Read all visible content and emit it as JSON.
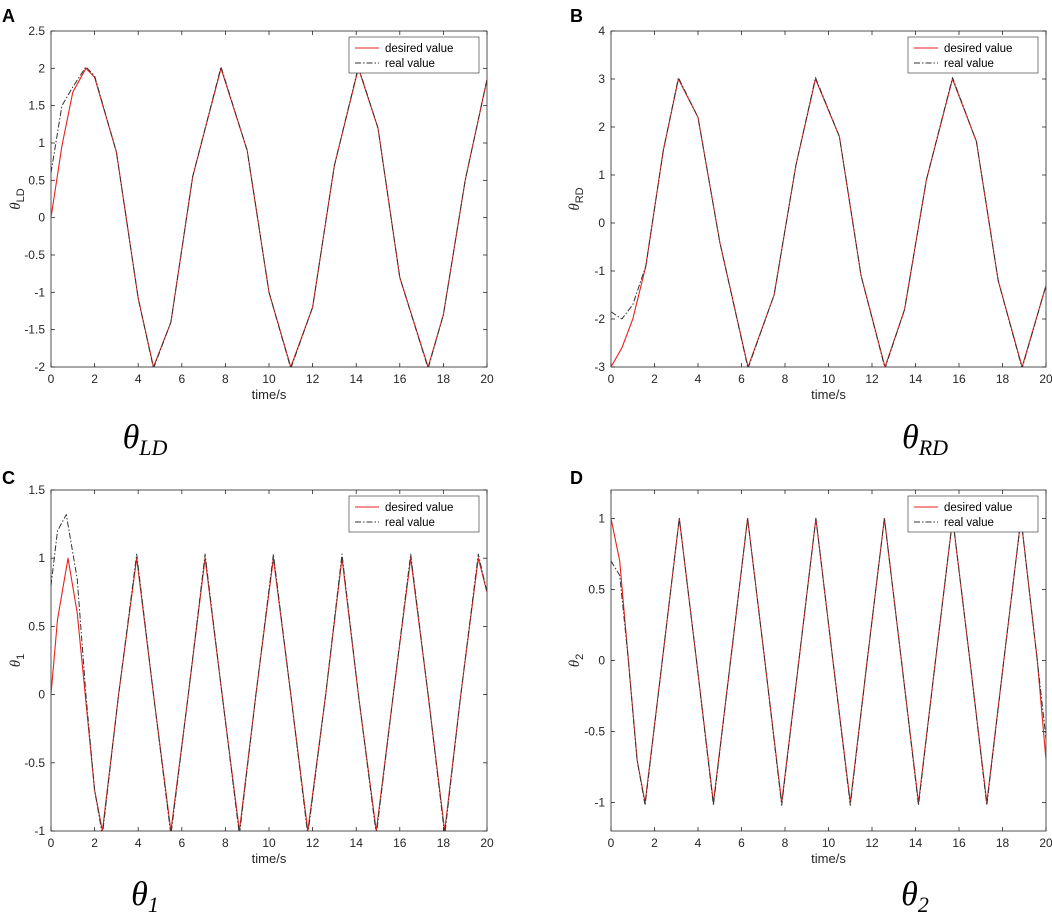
{
  "chart_data": [
    {
      "type": "line",
      "panel_label": "A",
      "caption": {
        "symbol": "θ",
        "sub": "LD"
      },
      "xlabel": "time/s",
      "ylabel": {
        "symbol": "θ",
        "sub": "LD"
      },
      "xlim": [
        0,
        20
      ],
      "ylim": [
        -2,
        2.5
      ],
      "xticks": [
        0,
        2,
        4,
        6,
        8,
        10,
        12,
        14,
        16,
        18,
        20
      ],
      "yticks": [
        -2,
        -1.5,
        -1,
        -0.5,
        0,
        0.5,
        1,
        1.5,
        2,
        2.5
      ],
      "grid": false,
      "legend": "top-right",
      "series": [
        {
          "name": "desired value",
          "color": "#e8221b",
          "style": "solid",
          "x": [
            0,
            0.5,
            1,
            1.6,
            2,
            3,
            4,
            4.7,
            5.5,
            6.5,
            7.8,
            9,
            10,
            11,
            12,
            13,
            14.1,
            15,
            16,
            17.3,
            18,
            19,
            20
          ],
          "y": [
            0,
            0.96,
            1.68,
            2.0,
            1.88,
            0.88,
            -1.08,
            -2.0,
            -1.4,
            0.55,
            2.0,
            0.9,
            -1.0,
            -2.0,
            -1.2,
            0.7,
            2.0,
            1.2,
            -0.8,
            -2.0,
            -1.3,
            0.5,
            1.85
          ]
        },
        {
          "name": "real value",
          "color": "#333333",
          "style": "dashdot",
          "x": [
            0,
            0.5,
            1,
            1.6,
            2,
            3,
            4,
            4.7,
            5.5,
            6.5,
            7.8,
            9,
            10,
            11,
            12,
            13,
            14.1,
            15,
            16,
            17.3,
            18,
            19,
            20
          ],
          "y": [
            0.6,
            1.5,
            1.75,
            2.02,
            1.9,
            0.88,
            -1.08,
            -2.02,
            -1.4,
            0.55,
            2.02,
            0.9,
            -1.0,
            -2.02,
            -1.2,
            0.7,
            2.02,
            1.2,
            -0.8,
            -2.02,
            -1.3,
            0.5,
            1.85
          ]
        }
      ]
    },
    {
      "type": "line",
      "panel_label": "B",
      "caption": {
        "symbol": "θ",
        "sub": "RD"
      },
      "xlabel": "time/s",
      "ylabel": {
        "symbol": "θ",
        "sub": "RD"
      },
      "xlim": [
        0,
        20
      ],
      "ylim": [
        -3,
        4
      ],
      "xticks": [
        0,
        2,
        4,
        6,
        8,
        10,
        12,
        14,
        16,
        18,
        20
      ],
      "yticks": [
        -3,
        -2,
        -1,
        0,
        1,
        2,
        3,
        4
      ],
      "grid": false,
      "legend": "top-right",
      "series": [
        {
          "name": "desired value",
          "color": "#e8221b",
          "style": "solid",
          "x": [
            0,
            0.5,
            1,
            1.6,
            2.4,
            3.1,
            4,
            5,
            6.3,
            7.5,
            8.5,
            9.4,
            10.5,
            11.5,
            12.6,
            13.5,
            14.5,
            15.7,
            16.8,
            17.8,
            18.9,
            20
          ],
          "y": [
            -3,
            -2.6,
            -2.0,
            -0.9,
            1.5,
            3.0,
            2.2,
            -0.4,
            -3.0,
            -1.5,
            1.2,
            3.0,
            1.8,
            -1.1,
            -3.0,
            -1.8,
            0.9,
            3.0,
            1.7,
            -1.2,
            -3.0,
            -1.3
          ]
        },
        {
          "name": "real value",
          "color": "#333333",
          "style": "dashdot",
          "x": [
            0,
            0.5,
            1,
            1.6,
            2.4,
            3.1,
            4,
            5,
            6.3,
            7.5,
            8.5,
            9.4,
            10.5,
            11.5,
            12.6,
            13.5,
            14.5,
            15.7,
            16.8,
            17.8,
            18.9,
            20
          ],
          "y": [
            -1.85,
            -2.0,
            -1.7,
            -0.9,
            1.5,
            3.03,
            2.2,
            -0.4,
            -3.03,
            -1.5,
            1.2,
            3.03,
            1.8,
            -1.1,
            -3.03,
            -1.8,
            0.9,
            3.03,
            1.7,
            -1.2,
            -3.03,
            -1.3
          ]
        }
      ]
    },
    {
      "type": "line",
      "panel_label": "C",
      "caption": {
        "symbol": "θ",
        "sub": "1"
      },
      "xlabel": "time/s",
      "ylabel": {
        "symbol": "θ",
        "sub": "1"
      },
      "xlim": [
        0,
        20
      ],
      "ylim": [
        -1,
        1.5
      ],
      "xticks": [
        0,
        2,
        4,
        6,
        8,
        10,
        12,
        14,
        16,
        18,
        20
      ],
      "yticks": [
        -1,
        -0.5,
        0,
        0.5,
        1,
        1.5
      ],
      "grid": false,
      "legend": "top-right",
      "series": [
        {
          "name": "desired value",
          "color": "#e8221b",
          "style": "solid",
          "x": [
            0,
            0.3,
            0.78,
            1.2,
            1.6,
            2.0,
            2.36,
            3.1,
            3.93,
            4.7,
            5.5,
            6.3,
            7.07,
            7.85,
            8.64,
            9.4,
            10.2,
            11.0,
            11.78,
            12.6,
            13.35,
            14.1,
            14.92,
            15.7,
            16.5,
            17.3,
            18.06,
            18.8,
            19.6,
            20
          ],
          "y": [
            0,
            0.55,
            1.0,
            0.6,
            -0.05,
            -0.7,
            -1.0,
            0.0,
            1.0,
            0.0,
            -1.0,
            0.0,
            1.0,
            0.0,
            -1.0,
            0.0,
            1.0,
            0.0,
            -1.0,
            0.0,
            1.0,
            0.0,
            -1.0,
            0.0,
            1.0,
            0.0,
            -1.0,
            0.0,
            1.0,
            0.75
          ]
        },
        {
          "name": "real value",
          "color": "#333333",
          "style": "dashdot",
          "x": [
            0,
            0.3,
            0.7,
            1.2,
            1.6,
            2.0,
            2.36,
            3.1,
            3.93,
            4.7,
            5.5,
            6.3,
            7.07,
            7.85,
            8.64,
            9.4,
            10.2,
            11.0,
            11.78,
            12.6,
            13.35,
            14.1,
            14.92,
            15.7,
            16.5,
            17.3,
            18.06,
            18.8,
            19.6,
            20
          ],
          "y": [
            0.8,
            1.2,
            1.32,
            0.85,
            0.0,
            -0.7,
            -1.03,
            0.0,
            1.03,
            0.0,
            -1.03,
            0.0,
            1.03,
            0.0,
            -1.03,
            0.0,
            1.03,
            0.0,
            -1.03,
            0.0,
            1.03,
            0.0,
            -1.03,
            0.0,
            1.03,
            0.0,
            -1.03,
            0.0,
            1.03,
            0.75
          ]
        }
      ]
    },
    {
      "type": "line",
      "panel_label": "D",
      "caption": {
        "symbol": "θ",
        "sub": "2"
      },
      "xlabel": "time/s",
      "ylabel": {
        "symbol": "θ",
        "sub": "2"
      },
      "xlim": [
        0,
        20
      ],
      "ylim": [
        -1.2,
        1.2
      ],
      "xticks": [
        0,
        2,
        4,
        6,
        8,
        10,
        12,
        14,
        16,
        18,
        20
      ],
      "yticks": [
        -1,
        -0.5,
        0,
        0.5,
        1
      ],
      "grid": false,
      "legend": "top-right",
      "series": [
        {
          "name": "desired value",
          "color": "#e8221b",
          "style": "solid",
          "x": [
            0,
            0.4,
            0.8,
            1.2,
            1.57,
            2.36,
            3.14,
            3.93,
            4.71,
            5.5,
            6.28,
            7.07,
            7.85,
            8.64,
            9.42,
            10.2,
            11.0,
            11.78,
            12.57,
            13.35,
            14.14,
            14.92,
            15.71,
            16.5,
            17.28,
            18.06,
            18.85,
            19.6,
            20
          ],
          "y": [
            1.0,
            0.7,
            0.0,
            -0.7,
            -1.0,
            0.0,
            1.0,
            0.0,
            -1.0,
            0.0,
            1.0,
            0.0,
            -1.0,
            0.0,
            1.0,
            0.0,
            -1.0,
            0.0,
            1.0,
            0.0,
            -1.0,
            0.0,
            1.0,
            0.0,
            -1.0,
            0.0,
            1.0,
            0.0,
            -0.7
          ]
        },
        {
          "name": "real value",
          "color": "#333333",
          "style": "dashdot",
          "x": [
            0,
            0.4,
            0.8,
            1.2,
            1.57,
            2.36,
            3.14,
            3.93,
            4.71,
            5.5,
            6.28,
            7.07,
            7.85,
            8.64,
            9.42,
            10.2,
            11.0,
            11.78,
            12.57,
            13.35,
            14.14,
            14.92,
            15.71,
            16.5,
            17.28,
            18.06,
            18.85,
            19.6,
            20
          ],
          "y": [
            0.7,
            0.6,
            0.0,
            -0.7,
            -1.02,
            0.0,
            1.0,
            0.0,
            -1.02,
            0.0,
            1.0,
            0.0,
            -1.02,
            0.0,
            1.0,
            0.0,
            -1.02,
            0.0,
            1.0,
            0.0,
            -1.02,
            0.0,
            1.0,
            0.0,
            -1.02,
            0.0,
            1.0,
            0.0,
            -0.55
          ]
        }
      ]
    }
  ]
}
